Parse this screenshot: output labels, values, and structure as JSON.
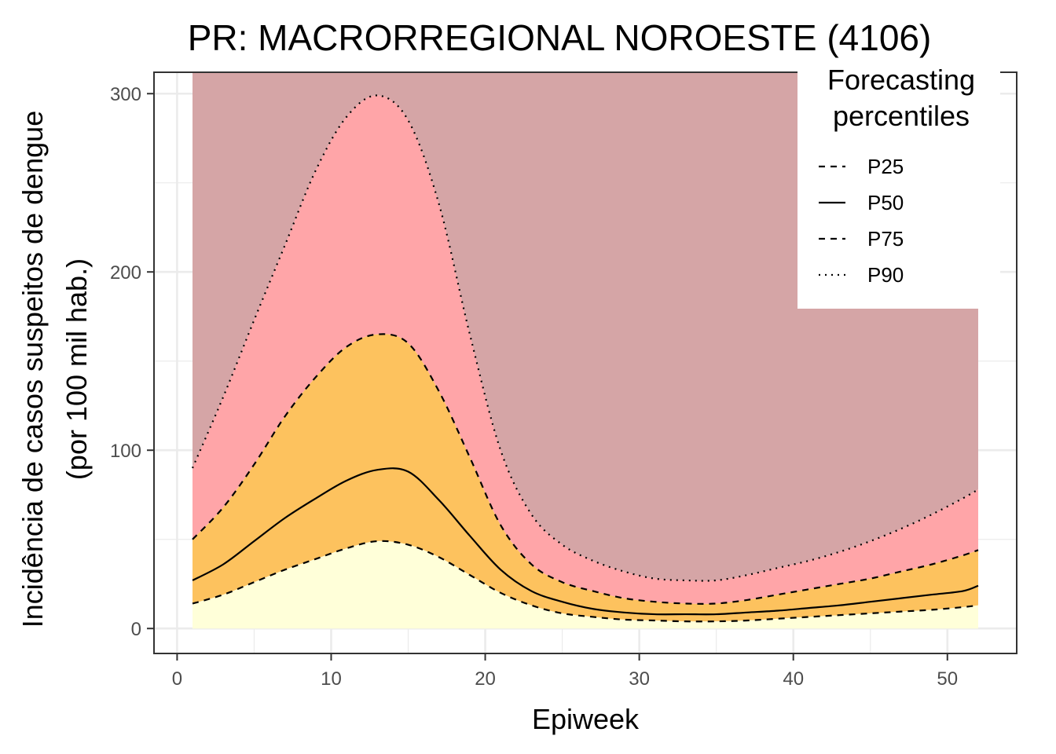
{
  "chart_data": {
    "type": "area",
    "title": "PR: MACRORREGIONAL NOROESTE (4106)",
    "xlabel": "Epiweek",
    "ylabel_line1": "Incidência de casos suspeitos de dengue",
    "ylabel_line2": "(por 100 mil hab.)",
    "xlim": [
      -1.5,
      54.5
    ],
    "ylim": [
      -14,
      312
    ],
    "x_ticks": [
      0,
      10,
      20,
      30,
      40,
      50
    ],
    "x_tick_labels": [
      "0",
      "10",
      "20",
      "30",
      "40",
      "50"
    ],
    "y_ticks": [
      0,
      100,
      200,
      300
    ],
    "y_tick_labels": [
      "0",
      "100",
      "200",
      "300"
    ],
    "grid": true,
    "legend": {
      "title_line1": "Forecasting",
      "title_line2": "percentiles",
      "placement": "top-right",
      "entries": [
        {
          "label": "P25",
          "linetype": "dashed"
        },
        {
          "label": "P50",
          "linetype": "solid"
        },
        {
          "label": "P75",
          "linetype": "dashed"
        },
        {
          "label": "P90",
          "linetype": "dotted"
        }
      ]
    },
    "band_colors": {
      "below_p25": "#ffffd9",
      "p25_p75": "#fdc25e",
      "p75_p90": "#ffa5a8",
      "above_p90": "#d5a5a6"
    },
    "x": [
      1,
      3,
      5,
      7,
      9,
      11,
      13,
      15,
      17,
      19,
      21,
      23,
      25,
      27,
      29,
      31,
      33,
      35,
      37,
      39,
      41,
      43,
      45,
      47,
      49,
      51,
      52
    ],
    "series": [
      {
        "name": "P25",
        "values": [
          14,
          19,
          26,
          33,
          39,
          45,
          49,
          47,
          40,
          30,
          20,
          13,
          8.5,
          6.5,
          5,
          4.5,
          4,
          4,
          4.5,
          5.5,
          6.5,
          7.5,
          8.5,
          9.5,
          10.5,
          12,
          13
        ]
      },
      {
        "name": "P50",
        "values": [
          27,
          36,
          49,
          62,
          73,
          83,
          89,
          88,
          72,
          52,
          33,
          21,
          15,
          11,
          9,
          8,
          8,
          8,
          9,
          10,
          11.5,
          13,
          15,
          17,
          19,
          21,
          24
        ]
      },
      {
        "name": "P75",
        "values": [
          50,
          68,
          92,
          119,
          141,
          158,
          165,
          160,
          133,
          96,
          58,
          36,
          26,
          21,
          17,
          15,
          14,
          14,
          16,
          19,
          22,
          25,
          28,
          32,
          36,
          41,
          44
        ]
      },
      {
        "name": "P90",
        "values": [
          90,
          130,
          173,
          215,
          257,
          287,
          299,
          285,
          238,
          165,
          100,
          64,
          47,
          38,
          32,
          28,
          27,
          27,
          30,
          34,
          38,
          43,
          49,
          56,
          64,
          73,
          78
        ]
      }
    ],
    "band_top": 312
  }
}
